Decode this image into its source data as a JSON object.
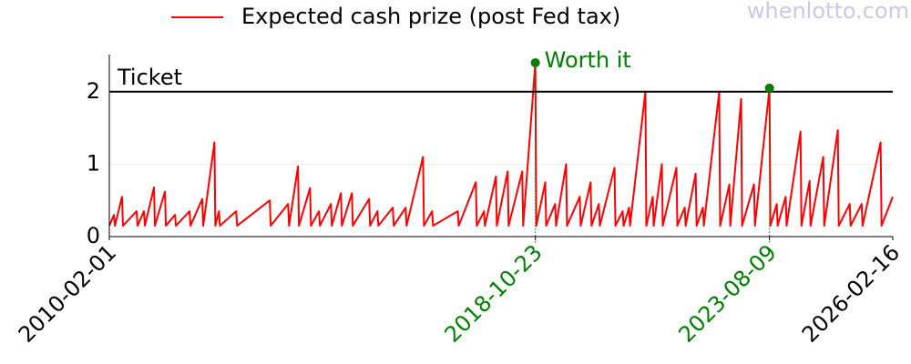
{
  "chart_data": {
    "type": "line",
    "watermark": "whenlotto.com",
    "x": [
      "2010-02-01",
      "2010-03-08",
      "2010-03-15",
      "2010-05-07",
      "2010-05-14",
      "2010-08-24",
      "2010-08-31",
      "2010-10-18",
      "2010-10-25",
      "2011-01-01",
      "2011-01-08",
      "2011-03-24",
      "2011-03-31",
      "2011-06-07",
      "2011-06-14",
      "2011-09-24",
      "2011-10-01",
      "2011-12-28",
      "2012-01-04",
      "2012-03-28",
      "2012-04-04",
      "2012-05-01",
      "2012-05-08",
      "2012-09-07",
      "2012-09-14",
      "2013-05-16",
      "2013-05-23",
      "2013-09-30",
      "2013-10-07",
      "2013-12-13",
      "2013-12-20",
      "2014-03-13",
      "2014-03-20",
      "2014-05-19",
      "2014-05-26",
      "2014-08-16",
      "2014-08-23",
      "2014-10-30",
      "2014-11-06",
      "2015-01-20",
      "2015-01-27",
      "2015-05-29",
      "2015-06-05",
      "2015-07-30",
      "2015-08-06",
      "2015-11-22",
      "2015-11-29",
      "2016-02-26",
      "2016-03-04",
      "2016-07-05",
      "2016-07-12",
      "2016-09-11",
      "2016-09-18",
      "2017-03-22",
      "2017-03-29",
      "2017-08-04",
      "2017-08-11",
      "2017-10-04",
      "2017-10-11",
      "2018-01-01",
      "2018-01-08",
      "2018-03-30",
      "2018-04-06",
      "2018-07-17",
      "2018-07-24",
      "2018-10-23",
      "2018-10-30",
      "2019-01-05",
      "2019-01-12",
      "2019-03-20",
      "2019-03-27",
      "2019-06-10",
      "2019-06-17",
      "2019-09-20",
      "2019-09-27",
      "2019-12-10",
      "2019-12-17",
      "2020-02-10",
      "2020-02-17",
      "2020-06-06",
      "2020-06-13",
      "2020-08-06",
      "2020-08-13",
      "2020-09-23",
      "2020-09-30",
      "2021-01-23",
      "2021-01-30",
      "2021-03-19",
      "2021-03-26",
      "2021-05-26",
      "2021-06-02",
      "2021-09-12",
      "2021-09-19",
      "2021-11-13",
      "2021-11-20",
      "2022-02-03",
      "2022-02-10",
      "2022-03-29",
      "2022-04-05",
      "2022-07-29",
      "2022-08-05",
      "2022-10-13",
      "2022-10-20",
      "2023-01-09",
      "2023-01-16",
      "2023-04-15",
      "2023-04-22",
      "2023-08-09",
      "2023-08-16",
      "2023-10-02",
      "2023-10-09",
      "2023-12-08",
      "2023-12-15",
      "2024-03-28",
      "2024-04-04",
      "2024-06-04",
      "2024-06-11",
      "2024-09-14",
      "2024-09-21",
      "2025-01-01",
      "2025-01-08",
      "2025-03-31",
      "2025-04-07",
      "2025-06-28",
      "2025-07-05",
      "2025-11-17",
      "2025-11-24",
      "2026-02-16"
    ],
    "series": [
      {
        "name": "Expected cash prize (post Fed tax)",
        "color": "#ff0000",
        "values": [
          0.15,
          0.3,
          0.15,
          0.55,
          0.15,
          0.35,
          0.15,
          0.35,
          0.15,
          0.68,
          0.15,
          0.62,
          0.15,
          0.3,
          0.15,
          0.35,
          0.15,
          0.52,
          0.15,
          1.3,
          0.15,
          0.35,
          0.15,
          0.35,
          0.15,
          0.5,
          0.15,
          0.45,
          0.15,
          0.97,
          0.15,
          0.67,
          0.15,
          0.35,
          0.15,
          0.45,
          0.15,
          0.6,
          0.15,
          0.6,
          0.15,
          0.52,
          0.15,
          0.35,
          0.15,
          0.4,
          0.15,
          0.4,
          0.15,
          1.1,
          0.15,
          0.35,
          0.15,
          0.35,
          0.15,
          0.75,
          0.15,
          0.35,
          0.15,
          0.83,
          0.15,
          0.9,
          0.15,
          0.9,
          0.15,
          2.4,
          0.15,
          0.75,
          0.15,
          0.45,
          0.15,
          1.0,
          0.15,
          0.55,
          0.15,
          0.75,
          0.15,
          0.45,
          0.15,
          0.95,
          0.15,
          0.35,
          0.15,
          0.4,
          0.15,
          2.0,
          0.15,
          0.55,
          0.15,
          1.0,
          0.15,
          0.95,
          0.15,
          0.4,
          0.15,
          0.87,
          0.15,
          0.4,
          0.15,
          2.0,
          0.15,
          0.72,
          0.15,
          1.9,
          0.15,
          0.72,
          0.15,
          2.05,
          0.15,
          0.45,
          0.15,
          0.55,
          0.15,
          1.45,
          0.15,
          0.77,
          0.15,
          1.1,
          0.15,
          1.47,
          0.15,
          0.45,
          0.15,
          0.45,
          0.15,
          1.3,
          0.15,
          0.55
        ]
      }
    ],
    "xlim": [
      "2010-02-01",
      "2026-02-16"
    ],
    "xticks": [
      "2010-02-01",
      "2018-10-23",
      "2023-08-09",
      "2026-02-16"
    ],
    "ylim": [
      0,
      2.5
    ],
    "yticks": [
      0,
      1,
      2
    ],
    "grid": true,
    "hline": {
      "y": 2,
      "label": "Ticket",
      "color": "#000000"
    },
    "highlight_color": "#008000",
    "highlights": [
      {
        "x": "2018-10-23",
        "y": 2.4,
        "label": "Worth it"
      },
      {
        "x": "2023-08-09",
        "y": 2.05
      }
    ]
  }
}
